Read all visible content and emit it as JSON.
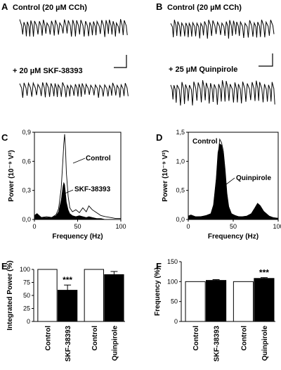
{
  "panels": {
    "A": {
      "label": "A",
      "trace_top_label": "Control (20 µM CCh)",
      "trace_bottom_label": "+ 20 µM SKF-38393"
    },
    "B": {
      "label": "B",
      "trace_top_label": "Control (20 µM CCh)",
      "trace_bottom_label": "+ 25 µM Quinpirole"
    },
    "C": {
      "label": "C"
    },
    "D": {
      "label": "D"
    },
    "E": {
      "label": "E"
    },
    "F": {
      "label": "F"
    }
  },
  "chart_data": [
    {
      "panel": "C",
      "type": "line",
      "xlabel": "Frequency (Hz)",
      "ylabel": "Power (10⁻⁹ V²)",
      "xlim": [
        0,
        100
      ],
      "ylim": [
        0,
        0.9
      ],
      "xticks": [
        "0",
        "50",
        "100"
      ],
      "yticks": [
        "0,0",
        "0,3",
        "0,6",
        "0,9"
      ],
      "series": [
        {
          "name": "Control",
          "style": "outline",
          "x": [
            0,
            3,
            8,
            14,
            20,
            25,
            28,
            31,
            33,
            34,
            35,
            36,
            37,
            39,
            41,
            44,
            48,
            52,
            56,
            60,
            63,
            67,
            72,
            77,
            82,
            88,
            94,
            100
          ],
          "y": [
            0.04,
            0.06,
            0.02,
            0.03,
            0.02,
            0.05,
            0.11,
            0.32,
            0.62,
            0.78,
            0.88,
            0.72,
            0.48,
            0.24,
            0.12,
            0.08,
            0.1,
            0.07,
            0.12,
            0.08,
            0.14,
            0.1,
            0.07,
            0.04,
            0.03,
            0.02,
            0.01,
            0.01
          ]
        },
        {
          "name": "SKF-38393",
          "style": "filled",
          "x": [
            0,
            3,
            8,
            14,
            20,
            25,
            28,
            31,
            33,
            34,
            35,
            36,
            37,
            39,
            41,
            44,
            48,
            52,
            56,
            60,
            63,
            67,
            72,
            77,
            82,
            88,
            94,
            100
          ],
          "y": [
            0.04,
            0.06,
            0.02,
            0.02,
            0.02,
            0.04,
            0.08,
            0.2,
            0.34,
            0.38,
            0.36,
            0.27,
            0.18,
            0.1,
            0.06,
            0.04,
            0.03,
            0.04,
            0.03,
            0.02,
            0.03,
            0.02,
            0.01,
            0.01,
            0.0,
            0.0,
            0.0,
            0.0
          ]
        }
      ],
      "annotations": [
        "Control",
        "SKF-38393"
      ]
    },
    {
      "panel": "D",
      "type": "line",
      "xlabel": "Frequency (Hz)",
      "ylabel": "Power (10⁻⁹ V²)",
      "xlim": [
        0,
        100
      ],
      "ylim": [
        0,
        1.5
      ],
      "xticks": [
        "0",
        "50",
        "100"
      ],
      "yticks": [
        "0,0",
        "0,5",
        "1,0",
        "1,5"
      ],
      "series": [
        {
          "name": "Control",
          "style": "outline",
          "x": [
            0,
            3,
            8,
            14,
            20,
            25,
            28,
            31,
            33,
            35,
            37,
            39,
            41,
            43,
            45,
            48,
            52,
            56,
            60,
            65,
            70,
            74,
            77,
            80,
            84,
            90,
            95,
            100
          ],
          "y": [
            0.05,
            0.07,
            0.04,
            0.05,
            0.06,
            0.08,
            0.18,
            0.55,
            1.05,
            1.38,
            1.32,
            1.18,
            0.85,
            0.45,
            0.22,
            0.1,
            0.06,
            0.05,
            0.04,
            0.05,
            0.08,
            0.16,
            0.22,
            0.18,
            0.1,
            0.05,
            0.03,
            0.02
          ]
        },
        {
          "name": "Quinpirole",
          "style": "filled",
          "x": [
            0,
            3,
            8,
            14,
            20,
            25,
            28,
            31,
            33,
            35,
            37,
            39,
            41,
            43,
            45,
            48,
            52,
            56,
            60,
            65,
            70,
            74,
            77,
            80,
            84,
            90,
            95,
            100
          ],
          "y": [
            0.06,
            0.08,
            0.05,
            0.05,
            0.07,
            0.1,
            0.25,
            0.7,
            1.15,
            1.3,
            1.28,
            1.12,
            0.78,
            0.4,
            0.2,
            0.1,
            0.07,
            0.05,
            0.05,
            0.06,
            0.1,
            0.2,
            0.28,
            0.24,
            0.14,
            0.06,
            0.03,
            0.02
          ]
        }
      ],
      "annotations": [
        "Control",
        "Quinpirole"
      ]
    },
    {
      "panel": "E",
      "type": "bar",
      "ylabel": "Integrated Power (%)",
      "ylim": [
        0,
        100
      ],
      "yticks": [
        "0",
        "25",
        "50",
        "75",
        "100"
      ],
      "categories": [
        "Control",
        "SKF-38393",
        "Control",
        "Quinpirole"
      ],
      "values": [
        100,
        60,
        100,
        90
      ],
      "errors": [
        0,
        10,
        0,
        6
      ],
      "fills": [
        "open",
        "solid",
        "open",
        "solid"
      ],
      "significance": [
        "",
        "***",
        "",
        ""
      ]
    },
    {
      "panel": "F",
      "type": "bar",
      "ylabel": "Frequency (%)",
      "ylim": [
        0,
        150
      ],
      "yticks": [
        "0",
        "50",
        "100",
        "150"
      ],
      "categories": [
        "Control",
        "SKF-38393",
        "Control",
        "Quinpirole"
      ],
      "values": [
        100,
        103,
        100,
        108
      ],
      "errors": [
        0,
        2,
        0,
        2
      ],
      "fills": [
        "open",
        "solid",
        "open",
        "solid"
      ],
      "significance": [
        "",
        "",
        "",
        "***"
      ]
    }
  ],
  "colors": {
    "ink": "#000000",
    "paper": "#ffffff"
  }
}
